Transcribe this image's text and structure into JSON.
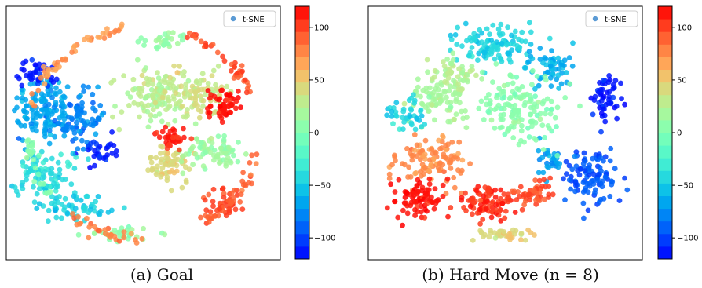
{
  "figure": {
    "captions": [
      "(a) Goal",
      "(b) Hard Move (n = 8)"
    ]
  },
  "chart_data": [
    {
      "type": "scatter",
      "title": "",
      "xlabel": "",
      "ylabel": "",
      "legend": {
        "label": "t-SNE",
        "position": "top-right",
        "marker_color": "#5b9bd5"
      },
      "colorbar": {
        "colormap": "rainbow",
        "range": [
          -120,
          120
        ],
        "ticks": [
          100,
          50,
          0,
          -50,
          -100
        ],
        "tick_labels": [
          "100",
          "50",
          "0",
          "−50",
          "−100"
        ],
        "levels": 20
      },
      "clusters": [
        {
          "x": -40,
          "y": 10,
          "rx": 12,
          "ry": 16,
          "value": -65,
          "n": 140
        },
        {
          "x": -25,
          "y": 6,
          "rx": 10,
          "ry": 12,
          "value": -80,
          "n": 80
        },
        {
          "x": -42,
          "y": 26,
          "rx": 8,
          "ry": 6,
          "value": -115,
          "n": 40
        },
        {
          "x": -18,
          "y": -8,
          "rx": 8,
          "ry": 6,
          "value": -110,
          "n": 30
        },
        {
          "x": -40,
          "y": -18,
          "rx": 12,
          "ry": 10,
          "value": -40,
          "n": 90
        },
        {
          "x": -28,
          "y": -32,
          "rx": 14,
          "ry": 6,
          "value": -45,
          "n": 60
        },
        {
          "x": 5,
          "y": 15,
          "rx": 14,
          "ry": 14,
          "value": 25,
          "n": 120
        },
        {
          "x": 22,
          "y": 18,
          "rx": 14,
          "ry": 10,
          "value": 35,
          "n": 90
        },
        {
          "x": 10,
          "y": -14,
          "rx": 10,
          "ry": 8,
          "value": 45,
          "n": 70
        },
        {
          "x": 28,
          "y": -8,
          "rx": 12,
          "ry": 8,
          "value": 15,
          "n": 80
        },
        {
          "x": 32,
          "y": 12,
          "rx": 6,
          "ry": 8,
          "value": 118,
          "n": 60
        },
        {
          "x": 12,
          "y": -2,
          "rx": 6,
          "ry": 4,
          "value": 110,
          "n": 40
        },
        {
          "x": 33,
          "y": -30,
          "rx": 8,
          "ry": 6,
          "value": 100,
          "n": 40
        },
        {
          "x": 8,
          "y": 40,
          "rx": 10,
          "ry": 4,
          "value": 10,
          "n": 30
        },
        {
          "x": -10,
          "y": -44,
          "rx": 14,
          "ry": 3,
          "value": 10,
          "n": 30
        }
      ],
      "rings": [
        {
          "radius": 46,
          "from_deg": 100,
          "to_deg": 170,
          "value": 70,
          "n": 50
        },
        {
          "radius": 46,
          "from_deg": 180,
          "to_deg": 215,
          "value": 5,
          "n": 25
        },
        {
          "radius": 46,
          "from_deg": 225,
          "to_deg": 270,
          "value": 80,
          "n": 30
        },
        {
          "radius": 46,
          "from_deg": 20,
          "to_deg": 70,
          "value": 95,
          "n": 40
        },
        {
          "radius": 46,
          "from_deg": 300,
          "to_deg": 350,
          "value": 90,
          "n": 40
        }
      ]
    },
    {
      "type": "scatter",
      "title": "",
      "xlabel": "",
      "ylabel": "",
      "legend": {
        "label": "t-SNE",
        "position": "top-right",
        "marker_color": "#5b9bd5"
      },
      "colorbar": {
        "colormap": "rainbow",
        "range": [
          -120,
          120
        ],
        "ticks": [
          100,
          50,
          0,
          -50,
          -100
        ],
        "tick_labels": [
          "100",
          "50",
          "0",
          "−50",
          "−100"
        ],
        "levels": 20
      },
      "clusters": [
        {
          "x": -5,
          "y": 38,
          "rx": 16,
          "ry": 8,
          "value": -45,
          "n": 110
        },
        {
          "x": 18,
          "y": 28,
          "rx": 10,
          "ry": 8,
          "value": -60,
          "n": 60
        },
        {
          "x": 40,
          "y": 15,
          "rx": 6,
          "ry": 10,
          "value": -115,
          "n": 50
        },
        {
          "x": 35,
          "y": -18,
          "rx": 12,
          "ry": 14,
          "value": -95,
          "n": 100
        },
        {
          "x": 18,
          "y": -12,
          "rx": 6,
          "ry": 6,
          "value": -70,
          "n": 30
        },
        {
          "x": 5,
          "y": 10,
          "rx": 16,
          "ry": 14,
          "value": 5,
          "n": 150
        },
        {
          "x": -25,
          "y": 15,
          "rx": 12,
          "ry": 10,
          "value": 20,
          "n": 90
        },
        {
          "x": -40,
          "y": 8,
          "rx": 8,
          "ry": 8,
          "value": -45,
          "n": 40
        },
        {
          "x": -30,
          "y": -12,
          "rx": 14,
          "ry": 10,
          "value": 75,
          "n": 110
        },
        {
          "x": -35,
          "y": -28,
          "rx": 10,
          "ry": 8,
          "value": 118,
          "n": 80
        },
        {
          "x": -8,
          "y": -30,
          "rx": 12,
          "ry": 8,
          "value": 105,
          "n": 90
        },
        {
          "x": 10,
          "y": -26,
          "rx": 8,
          "ry": 6,
          "value": 95,
          "n": 50
        },
        {
          "x": 0,
          "y": -44,
          "rx": 10,
          "ry": 3,
          "value": 45,
          "n": 40
        },
        {
          "x": -20,
          "y": 26,
          "rx": 10,
          "ry": 6,
          "value": 25,
          "n": 50
        }
      ],
      "rings": []
    }
  ]
}
